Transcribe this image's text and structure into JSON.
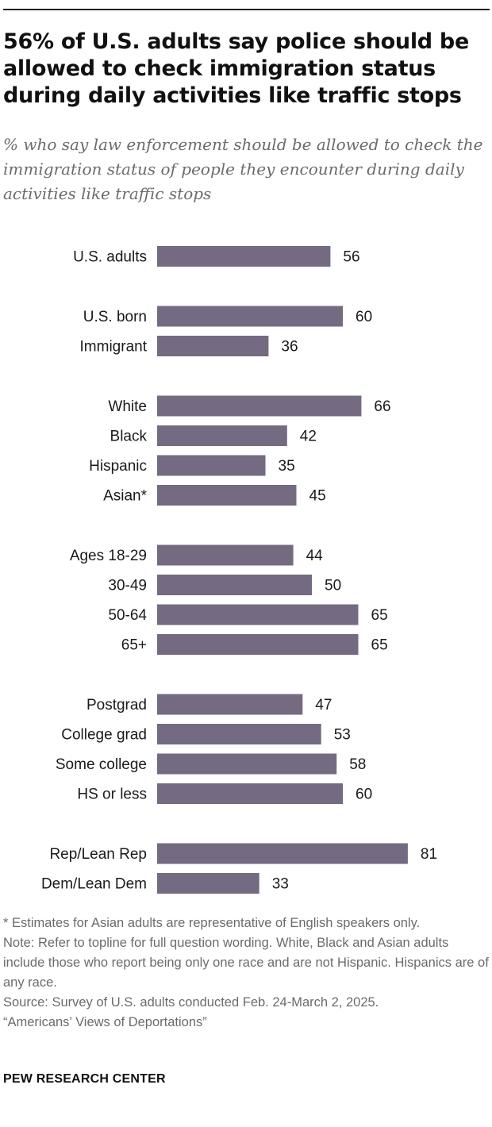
{
  "header": {
    "title": "56% of U.S. adults say police should be allowed to check immigration status during daily activities like traffic stops",
    "subtitle": "% who say law enforcement should be allowed to check the immigration status of people they encounter during daily activities like traffic stops"
  },
  "chart_data": {
    "type": "bar",
    "orientation": "horizontal",
    "title": "56% of U.S. adults say police should be allowed to check immigration status during daily activities like traffic stops",
    "subtitle": "% who say law enforcement should be allowed to check the immigration status of people they encounter during daily activities like traffic stops",
    "bar_color": "#746a81",
    "grid": false,
    "legend": "none",
    "xlim": [
      0,
      100
    ],
    "groups": [
      {
        "categories": [
          "U.S. adults"
        ],
        "values": [
          56
        ]
      },
      {
        "categories": [
          "U.S. born",
          "Immigrant"
        ],
        "values": [
          60,
          36
        ]
      },
      {
        "categories": [
          "White",
          "Black",
          "Hispanic",
          "Asian*"
        ],
        "values": [
          66,
          42,
          35,
          45
        ]
      },
      {
        "categories": [
          "Ages 18-29",
          "30-49",
          "50-64",
          "65+"
        ],
        "values": [
          44,
          50,
          65,
          65
        ]
      },
      {
        "categories": [
          "Postgrad",
          "College grad",
          "Some college",
          "HS or less"
        ],
        "values": [
          47,
          53,
          58,
          60
        ]
      },
      {
        "categories": [
          "Rep/Lean Rep",
          "Dem/Lean Dem"
        ],
        "values": [
          81,
          33
        ]
      }
    ]
  },
  "footer": {
    "asterisk_note": "* Estimates for Asian adults are representative of English speakers only.",
    "note": "Note: Refer to topline for full question wording. White, Black and Asian adults include those who report being only one race and are not Hispanic. Hispanics are of any race.",
    "source": "Source: Survey of U.S. adults conducted Feb. 24-March 2, 2025.",
    "report": "“Americans’ Views of Deportations”",
    "organization": "PEW RESEARCH CENTER"
  }
}
